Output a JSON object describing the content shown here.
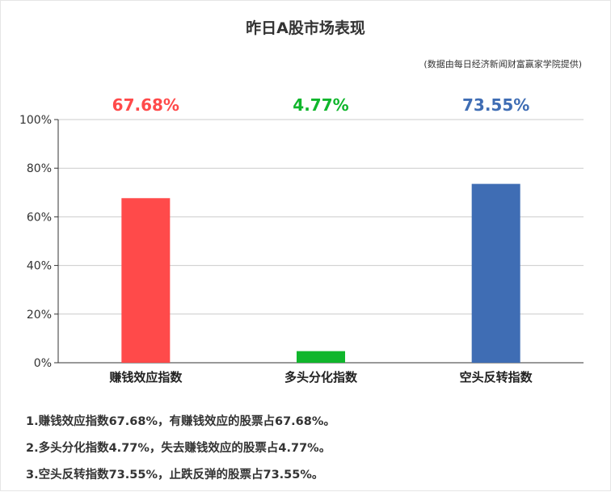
{
  "title": "昨日A股市场表现",
  "source": "(数据由每日经济新闻财富赢家学院提供)",
  "chart_data": {
    "type": "bar",
    "categories": [
      "赚钱效应指数",
      "多头分化指数",
      "空头反转指数"
    ],
    "values": [
      67.68,
      4.77,
      73.55
    ],
    "value_labels": [
      "67.68%",
      "4.77%",
      "73.55%"
    ],
    "colors": [
      "#ff4a4a",
      "#10b62c",
      "#3f6db4"
    ],
    "ylim": [
      0,
      100
    ],
    "yticks": [
      "0%",
      "20%",
      "40%",
      "60%",
      "80%",
      "100%"
    ],
    "grid": true
  },
  "notes": [
    "1.赚钱效应指数67.68%，有赚钱效应的股票占67.68%。",
    "2.多头分化指数4.77%，失去赚钱效应的股票占4.77%。",
    "3.空头反转指数73.55%，止跌反弹的股票占73.55%。"
  ]
}
